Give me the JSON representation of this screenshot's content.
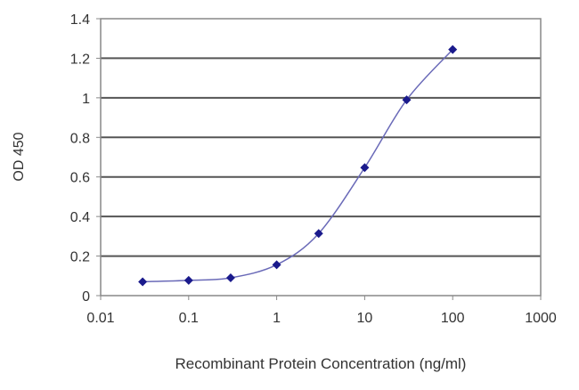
{
  "chart_data": {
    "type": "line",
    "title": "",
    "xlabel": "Recombinant Protein Concentration (ng/ml)",
    "ylabel": "OD 450",
    "x_scale": "log",
    "xlim": [
      0.01,
      1000
    ],
    "ylim": [
      0,
      1.4
    ],
    "x_ticks": [
      "0.01",
      "0.1",
      "1",
      "10",
      "100",
      "1000"
    ],
    "y_ticks": [
      "0",
      "0.2",
      "0.4",
      "0.6",
      "0.8",
      "1",
      "1.2",
      "1.4"
    ],
    "grid": "horizontal",
    "series": [
      {
        "color": "#1a1a8c",
        "line_color": "#6a6ab8",
        "marker": "diamond",
        "x": [
          0.03,
          0.1,
          0.3,
          1,
          3,
          10,
          30,
          100
        ],
        "y": [
          0.07,
          0.077,
          0.09,
          0.156,
          0.314,
          0.647,
          0.99,
          1.244
        ]
      }
    ]
  }
}
